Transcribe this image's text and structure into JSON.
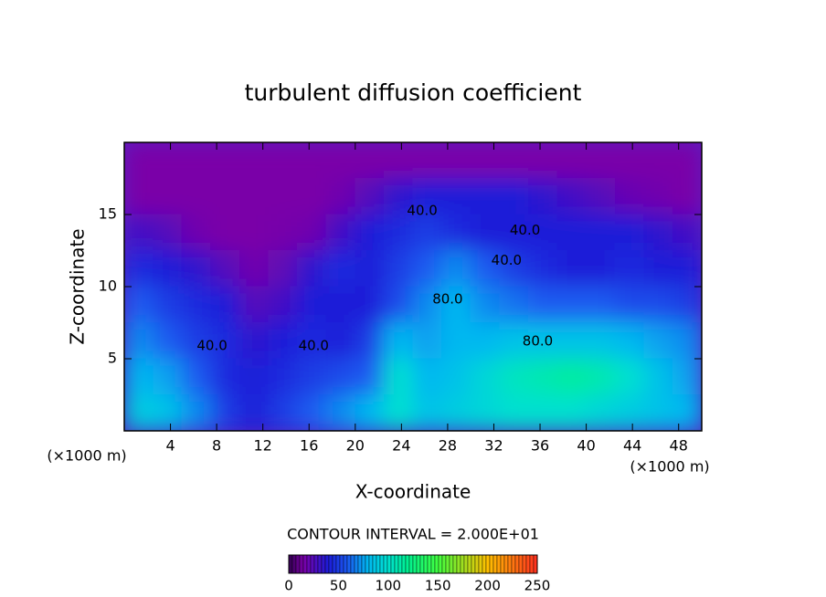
{
  "chart_data": {
    "type": "contour",
    "title": "turbulent diffusion coefficient",
    "xlabel": "X-coordinate",
    "ylabel": "Z-coordinate",
    "xunit": "(×1000 m)",
    "yunit": "(×1000 m)",
    "subtitle": "CONTOUR INTERVAL = 2.000E+01",
    "xlim": [
      0,
      50
    ],
    "ylim": [
      0,
      20
    ],
    "xticks": [
      4,
      8,
      12,
      16,
      20,
      24,
      28,
      32,
      36,
      40,
      44,
      48
    ],
    "yticks": [
      5,
      10,
      15
    ],
    "x": [
      1.25,
      3.75,
      6.25,
      8.75,
      11.25,
      13.75,
      16.25,
      18.75,
      21.25,
      23.75,
      26.25,
      28.75,
      31.25,
      33.75,
      36.25,
      38.75,
      41.25,
      43.75,
      46.25,
      48.75
    ],
    "y": [
      18.75,
      16.25,
      13.75,
      11.25,
      8.75,
      6.25,
      3.75,
      1.25
    ],
    "z": [
      [
        15,
        15,
        15,
        15,
        15,
        15,
        15,
        15,
        15,
        15,
        15,
        15,
        15,
        15,
        15,
        15,
        15,
        15,
        15,
        15
      ],
      [
        15,
        15,
        15,
        15,
        15,
        15,
        15,
        18,
        25,
        35,
        40,
        40,
        40,
        40,
        35,
        30,
        25,
        20,
        18,
        15
      ],
      [
        30,
        25,
        18,
        15,
        15,
        16,
        18,
        30,
        40,
        45,
        50,
        45,
        40,
        40,
        40,
        40,
        40,
        40,
        35,
        30
      ],
      [
        45,
        40,
        35,
        25,
        18,
        22,
        35,
        45,
        40,
        50,
        60,
        70,
        60,
        50,
        45,
        40,
        40,
        45,
        40,
        40
      ],
      [
        60,
        50,
        45,
        40,
        25,
        30,
        40,
        40,
        40,
        55,
        70,
        80,
        70,
        65,
        60,
        60,
        60,
        55,
        55,
        50
      ],
      [
        70,
        60,
        50,
        45,
        35,
        40,
        45,
        40,
        50,
        80,
        75,
        80,
        80,
        85,
        85,
        85,
        85,
        80,
        75,
        70
      ],
      [
        80,
        75,
        60,
        45,
        40,
        45,
        50,
        55,
        60,
        100,
        80,
        85,
        95,
        105,
        110,
        115,
        110,
        100,
        85,
        75
      ],
      [
        90,
        85,
        70,
        50,
        40,
        50,
        60,
        70,
        80,
        100,
        85,
        90,
        95,
        100,
        100,
        100,
        95,
        90,
        85,
        80
      ]
    ],
    "colorbar_lim": [
      0,
      250
    ],
    "colorbar_ticks": [
      0,
      50,
      100,
      150,
      200,
      250
    ],
    "annotations": [
      {
        "text": "40.0",
        "x": 25.8,
        "y": 15.25
      },
      {
        "text": "40.0",
        "x": 34.7,
        "y": 13.9
      },
      {
        "text": "40.0",
        "x": 33.1,
        "y": 11.8
      },
      {
        "text": "80.0",
        "x": 28.0,
        "y": 9.1
      },
      {
        "text": "80.0",
        "x": 35.8,
        "y": 6.2
      },
      {
        "text": "40.0",
        "x": 7.6,
        "y": 5.9
      },
      {
        "text": "40.0",
        "x": 16.4,
        "y": 5.9
      }
    ]
  }
}
